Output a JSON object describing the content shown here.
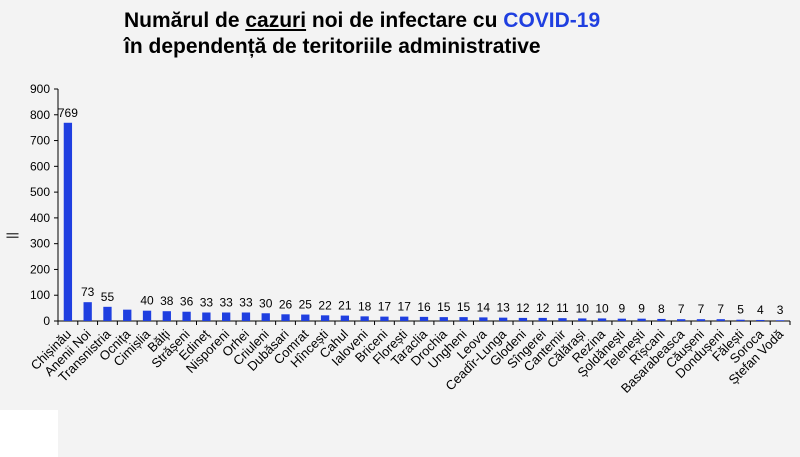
{
  "title": {
    "line1_part1": "Numărul de ",
    "line1_part2": "cazuri",
    "line1_part3": " noi de infectare cu ",
    "line1_highlight": "COVID-19",
    "line2": "în dependență de teritoriile administrative"
  },
  "colors": {
    "bar": "#1f3fe0",
    "highlight": "#1f3fe0"
  },
  "chart_data": {
    "type": "bar",
    "title": "Numărul de cazuri noi de infectare cu COVID-19 în dependență de teritoriile administrative",
    "xlabel": "",
    "ylabel": "",
    "ylim": [
      0,
      900
    ],
    "yticks": [
      0,
      100,
      200,
      300,
      400,
      500,
      600,
      700,
      800,
      900
    ],
    "grid": false,
    "categories": [
      "Chișinău",
      "Anenii Noi",
      "Transnistria",
      "Ocnița",
      "Cimișlia",
      "Bălți",
      "Strășeni",
      "Edineț",
      "Nisporeni",
      "Orhei",
      "Criuleni",
      "Dubăsari",
      "Comrat",
      "Hîncești",
      "Cahul",
      "Ialoveni",
      "Briceni",
      "Florești",
      "Taraclia",
      "Drochia",
      "Ungheni",
      "Leova",
      "Ceadîr-Lunga",
      "Glodeni",
      "Sîngerei",
      "Cantemir",
      "Călărași",
      "Rezina",
      "Șoldănești",
      "Telenești",
      "Rîșcani",
      "Basarabeasca",
      "Căușeni",
      "Dondușeni",
      "Fălești",
      "Soroca",
      "Ștefan Vodă"
    ],
    "values": [
      769,
      73,
      55,
      44,
      40,
      38,
      36,
      33,
      33,
      33,
      30,
      26,
      25,
      22,
      21,
      18,
      17,
      17,
      16,
      15,
      15,
      14,
      13,
      12,
      12,
      11,
      10,
      10,
      9,
      9,
      8,
      7,
      7,
      7,
      5,
      4,
      3
    ],
    "data_labels": [
      "769",
      "73",
      "55",
      "",
      "40",
      "38",
      "36",
      "33",
      "33",
      "33",
      "30",
      "26",
      "25",
      "22",
      "21",
      "18",
      "17",
      "17",
      "16",
      "15",
      "15",
      "14",
      "13",
      "12",
      "12",
      "11",
      "10",
      "10",
      "9",
      "9",
      "8",
      "7",
      "7",
      "7",
      "5",
      "4",
      "3"
    ]
  }
}
